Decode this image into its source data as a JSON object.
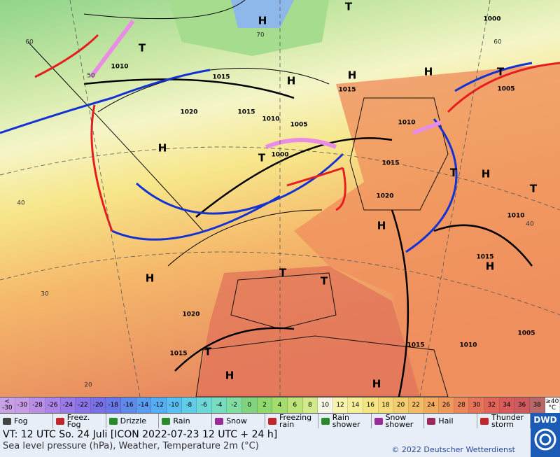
{
  "map": {
    "centers": [
      "H",
      "H",
      "H",
      "H",
      "H",
      "H",
      "H",
      "H",
      "H",
      "H",
      "H",
      "T",
      "T",
      "T",
      "T",
      "T",
      "T",
      "T",
      "T",
      "T"
    ],
    "isobar_labels": [
      "1015",
      "1015",
      "1015",
      "1015",
      "1015",
      "1015",
      "1015",
      "1020",
      "1020",
      "1020",
      "1010",
      "1010",
      "1010",
      "1010",
      "1010",
      "1005",
      "1005",
      "1005",
      "1000",
      "1000"
    ],
    "latitude_labels": [
      "60",
      "50",
      "40",
      "30",
      "20",
      "70",
      "60",
      "40"
    ]
  },
  "temperature_scale": {
    "labels": [
      "< -30",
      "-30",
      "-28",
      "-26",
      "-24",
      "-22",
      "-20",
      "-18",
      "-16",
      "-14",
      "-12",
      "-10",
      "-8",
      "-6",
      "-4",
      "-2",
      "0",
      "2",
      "4",
      "6",
      "8",
      "10",
      "12",
      "14",
      "16",
      "18",
      "20",
      "22",
      "24",
      "26",
      "28",
      "30",
      "32",
      "34",
      "36",
      "38",
      "≥40 °C"
    ],
    "colors": [
      "#c8a0e6",
      "#c89be6",
      "#b98fe6",
      "#aa84e6",
      "#9a7ae6",
      "#8a73e6",
      "#7a70e6",
      "#6a78e6",
      "#5f8aea",
      "#5a9cee",
      "#55adf2",
      "#5abef2",
      "#62cde8",
      "#6ed8d8",
      "#78dcc0",
      "#80dca0",
      "#80d480",
      "#90d86e",
      "#a4dc6e",
      "#bce27a",
      "#d2ea8c",
      "#f6f6e6",
      "#f8f4b0",
      "#f6ee98",
      "#f4e484",
      "#f4da78",
      "#f2cc6e",
      "#f2bc66",
      "#f0aa60",
      "#ee985c",
      "#ea865a",
      "#e67458",
      "#e06458",
      "#d85a5a",
      "#cc5a5e",
      "#b86868",
      "#ffffff"
    ]
  },
  "legend": [
    "Fog",
    "Freez. Fog",
    "Drizzle",
    "Rain",
    "Snow",
    "Freezing rain",
    "Rain shower",
    "Snow shower",
    "Hail",
    "Thunder storm"
  ],
  "footer": {
    "valid_time": "VT: 12 UTC So.  24 Juli [ICON 2022-07-23  12 UTC + 24 h]",
    "subtitle": "Sea level pressure (hPa), Weather, Temperature 2m (°C)",
    "copyright": "© 2022 Deutscher Wetterdienst",
    "logo": "DWD"
  }
}
